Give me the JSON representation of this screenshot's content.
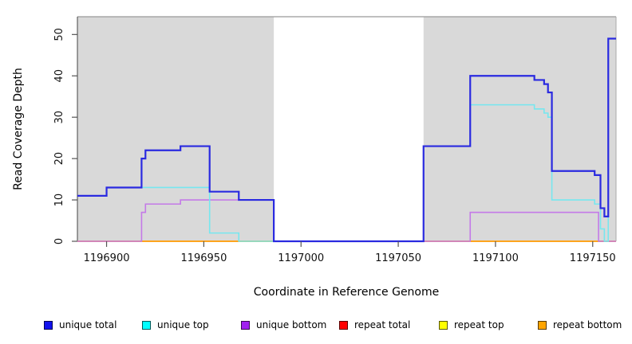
{
  "chart_data": {
    "type": "line",
    "subtype": "step-coverage",
    "title": "",
    "xlabel": "Coordinate in Reference Genome",
    "ylabel": "Read Coverage Depth",
    "xlim": [
      1196885,
      1197162
    ],
    "ylim": [
      0,
      54.3
    ],
    "x_ticks": [
      1196900,
      1196950,
      1197000,
      1197050,
      1197100,
      1197150
    ],
    "y_ticks": [
      0,
      10,
      20,
      30,
      40,
      50
    ],
    "grid": false,
    "panel_color": "#ffffff",
    "shaded_region_color": "#d9d9d9",
    "shaded_regions": [
      [
        1196885,
        1196986
      ],
      [
        1197063,
        1197162
      ]
    ],
    "series": [
      {
        "name": "repeat total",
        "color": "#dc2048",
        "width": 1.5,
        "points": [
          [
            1196885,
            0
          ],
          [
            1197162,
            0
          ]
        ]
      },
      {
        "name": "repeat top",
        "color": "#ffff00",
        "width": 1.5,
        "points": [
          [
            1196885,
            0
          ],
          [
            1197162,
            0
          ]
        ]
      },
      {
        "name": "repeat bottom",
        "color": "#ffa018",
        "width": 1.8,
        "points": [
          [
            1196885,
            0
          ],
          [
            1197162,
            0
          ]
        ]
      },
      {
        "name": "unique bottom",
        "color": "#c47ae8",
        "width": 1.6,
        "points": [
          [
            1196885,
            0
          ],
          [
            1196918,
            7
          ],
          [
            1196920,
            9
          ],
          [
            1196938,
            10
          ],
          [
            1196986,
            0
          ],
          [
            1197087,
            7
          ],
          [
            1197153,
            0
          ],
          [
            1197162,
            0
          ]
        ]
      },
      {
        "name": "unique top",
        "color": "#76e7ef",
        "width": 1.6,
        "points": [
          [
            1196885,
            11
          ],
          [
            1196900,
            13
          ],
          [
            1196953,
            2
          ],
          [
            1196968,
            0
          ],
          [
            1197063,
            23
          ],
          [
            1197087,
            33
          ],
          [
            1197120,
            32
          ],
          [
            1197125,
            31
          ],
          [
            1197127,
            30
          ],
          [
            1197129,
            10
          ],
          [
            1197151,
            9
          ],
          [
            1197154,
            3
          ],
          [
            1197156,
            0
          ],
          [
            1197158,
            49
          ],
          [
            1197162,
            49
          ]
        ]
      },
      {
        "name": "unique total",
        "color": "#2a2ae0",
        "width": 2.2,
        "points": [
          [
            1196885,
            11
          ],
          [
            1196900,
            13
          ],
          [
            1196918,
            20
          ],
          [
            1196920,
            22
          ],
          [
            1196938,
            23
          ],
          [
            1196953,
            12
          ],
          [
            1196968,
            10
          ],
          [
            1196986,
            0
          ],
          [
            1197063,
            23
          ],
          [
            1197087,
            40
          ],
          [
            1197120,
            39
          ],
          [
            1197125,
            38
          ],
          [
            1197127,
            36
          ],
          [
            1197129,
            17
          ],
          [
            1197151,
            16
          ],
          [
            1197154,
            8
          ],
          [
            1197156,
            6
          ],
          [
            1197158,
            49
          ],
          [
            1197162,
            49
          ]
        ]
      }
    ]
  },
  "axis_titles": {
    "x": "Coordinate in Reference Genome",
    "y": "Read Coverage Depth"
  },
  "legend": {
    "items": [
      {
        "label": "unique total",
        "color": "#1212ee"
      },
      {
        "label": "unique top",
        "color": "#00ffff"
      },
      {
        "label": "unique bottom",
        "color": "#a020f0"
      },
      {
        "label": "repeat total",
        "color": "#ff0000"
      },
      {
        "label": "repeat top",
        "color": "#ffff00"
      },
      {
        "label": "repeat bottom",
        "color": "#ffa500"
      }
    ]
  }
}
